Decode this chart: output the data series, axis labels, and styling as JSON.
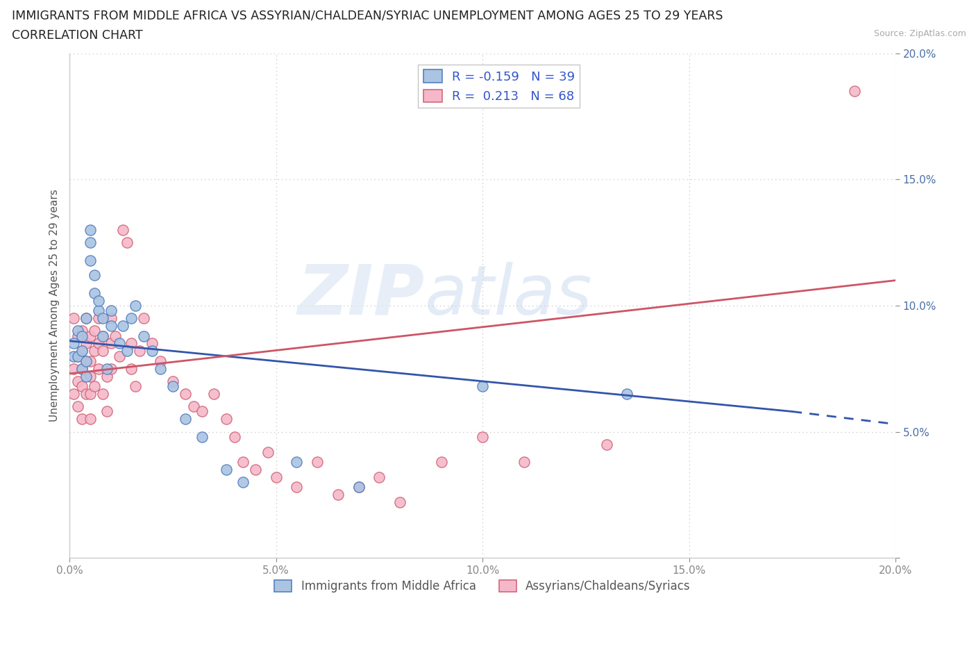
{
  "title_line1": "IMMIGRANTS FROM MIDDLE AFRICA VS ASSYRIAN/CHALDEAN/SYRIAC UNEMPLOYMENT AMONG AGES 25 TO 29 YEARS",
  "title_line2": "CORRELATION CHART",
  "source_text": "Source: ZipAtlas.com",
  "ylabel": "Unemployment Among Ages 25 to 29 years",
  "watermark_zip": "ZIP",
  "watermark_atlas": "atlas",
  "xlim": [
    0.0,
    0.2
  ],
  "ylim": [
    0.0,
    0.2
  ],
  "xticks": [
    0.0,
    0.05,
    0.1,
    0.15,
    0.2
  ],
  "yticks": [
    0.0,
    0.05,
    0.1,
    0.15,
    0.2
  ],
  "blue_R": "-0.159",
  "blue_N": "39",
  "pink_R": "0.213",
  "pink_N": "68",
  "blue_color": "#aac4e2",
  "pink_color": "#f5b8ca",
  "blue_edge_color": "#5580c0",
  "pink_edge_color": "#d06878",
  "blue_line_color": "#3355aa",
  "pink_line_color": "#cc5566",
  "legend_label_blue": "Immigrants from Middle Africa",
  "legend_label_pink": "Assyrians/Chaldeans/Syriacs",
  "blue_line_x0": 0.0,
  "blue_line_y0": 0.086,
  "blue_line_x1": 0.175,
  "blue_line_y1": 0.058,
  "blue_line_dash_x1": 0.2,
  "blue_line_dash_y1": 0.053,
  "pink_line_x0": 0.0,
  "pink_line_y0": 0.073,
  "pink_line_x1": 0.2,
  "pink_line_y1": 0.11,
  "blue_scatter_x": [
    0.001,
    0.001,
    0.002,
    0.002,
    0.003,
    0.003,
    0.003,
    0.004,
    0.004,
    0.004,
    0.005,
    0.005,
    0.005,
    0.006,
    0.006,
    0.007,
    0.007,
    0.008,
    0.008,
    0.009,
    0.01,
    0.01,
    0.012,
    0.013,
    0.014,
    0.015,
    0.016,
    0.018,
    0.02,
    0.022,
    0.025,
    0.028,
    0.032,
    0.038,
    0.042,
    0.055,
    0.07,
    0.1,
    0.135
  ],
  "blue_scatter_y": [
    0.08,
    0.085,
    0.08,
    0.09,
    0.075,
    0.082,
    0.088,
    0.078,
    0.072,
    0.095,
    0.118,
    0.125,
    0.13,
    0.105,
    0.112,
    0.098,
    0.102,
    0.095,
    0.088,
    0.075,
    0.092,
    0.098,
    0.085,
    0.092,
    0.082,
    0.095,
    0.1,
    0.088,
    0.082,
    0.075,
    0.068,
    0.055,
    0.048,
    0.035,
    0.03,
    0.038,
    0.028,
    0.068,
    0.065
  ],
  "pink_scatter_x": [
    0.001,
    0.001,
    0.001,
    0.002,
    0.002,
    0.002,
    0.002,
    0.003,
    0.003,
    0.003,
    0.003,
    0.003,
    0.004,
    0.004,
    0.004,
    0.004,
    0.005,
    0.005,
    0.005,
    0.005,
    0.005,
    0.006,
    0.006,
    0.006,
    0.007,
    0.007,
    0.007,
    0.008,
    0.008,
    0.008,
    0.009,
    0.009,
    0.01,
    0.01,
    0.01,
    0.011,
    0.012,
    0.013,
    0.014,
    0.015,
    0.015,
    0.016,
    0.017,
    0.018,
    0.02,
    0.022,
    0.025,
    0.028,
    0.03,
    0.032,
    0.035,
    0.038,
    0.04,
    0.042,
    0.045,
    0.048,
    0.05,
    0.055,
    0.06,
    0.065,
    0.07,
    0.075,
    0.08,
    0.09,
    0.1,
    0.11,
    0.13,
    0.19
  ],
  "pink_scatter_y": [
    0.095,
    0.075,
    0.065,
    0.08,
    0.088,
    0.07,
    0.06,
    0.09,
    0.082,
    0.075,
    0.068,
    0.055,
    0.085,
    0.095,
    0.078,
    0.065,
    0.088,
    0.078,
    0.072,
    0.065,
    0.055,
    0.09,
    0.082,
    0.068,
    0.095,
    0.085,
    0.075,
    0.088,
    0.082,
    0.065,
    0.072,
    0.058,
    0.095,
    0.085,
    0.075,
    0.088,
    0.08,
    0.13,
    0.125,
    0.085,
    0.075,
    0.068,
    0.082,
    0.095,
    0.085,
    0.078,
    0.07,
    0.065,
    0.06,
    0.058,
    0.065,
    0.055,
    0.048,
    0.038,
    0.035,
    0.042,
    0.032,
    0.028,
    0.038,
    0.025,
    0.028,
    0.032,
    0.022,
    0.038,
    0.048,
    0.038,
    0.045,
    0.185
  ],
  "background_color": "#ffffff",
  "grid_color": "#cccccc"
}
